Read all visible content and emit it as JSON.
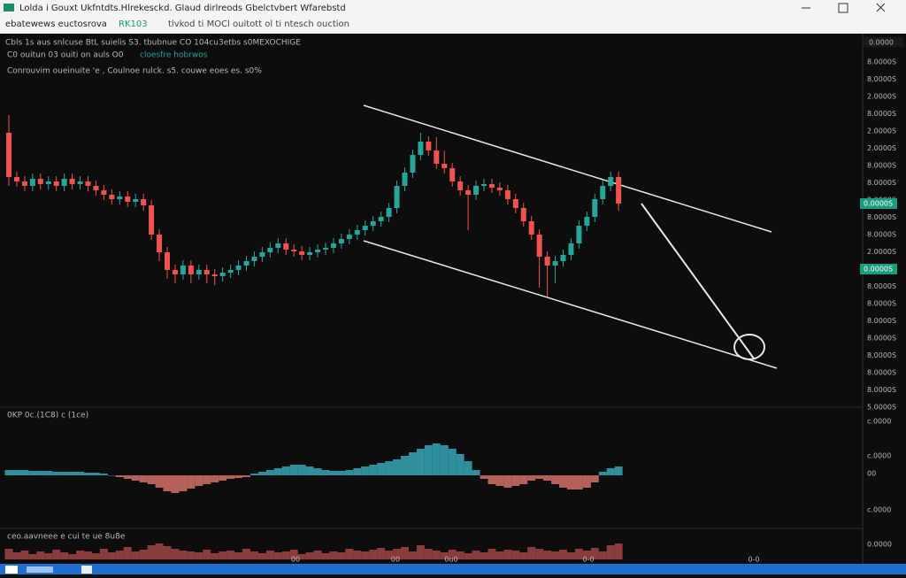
{
  "window": {
    "title": "Lolda  i Gouxt Ukfntdts.Hlrekesckd.   Glaud dirlreods Gbelctvbert Wfarebstd",
    "toolbar_a": "ebatewews euctosrova",
    "toolbar_b": "RK103",
    "toolbar_c": "tlvkod  ti  MOCl  ouitott  ol ti ntesch ouction"
  },
  "header": {
    "line1": "Cbls 1s  aus  snlcuse  BtL  suielis  S3.    tbubnue  CO 104cu3etbs  s0MEXOCHIGE",
    "line2": "C0  ouitun  03  ouiti on  auls   O0",
    "line2b": "cloesfre   hobrwos",
    "line3": "Conrouvim  oueinuite  'e  ,  Coulnoe  rulck.  s5.   couwe   eoes   es.   s0%"
  },
  "chart_data": [
    {
      "type": "candlestick",
      "ylim": [
        0,
        400
      ],
      "up_color": "#26a69a",
      "down_color": "#ef5350",
      "axis_labels": [
        "8.0000S",
        "8.0000S",
        "2.0000S",
        "8.0000S",
        "2.0000S",
        "2.0000S",
        "8.0000S",
        "8.0000S",
        "8.0000S",
        "8.0000S",
        "8.0000S",
        "2.0000S",
        "8.0000S",
        "8.0000S",
        "8.0000S",
        "8.0000S",
        "8.0000S",
        "8.0000S",
        "8.0000S",
        "8.0000S",
        "5.0000S"
      ],
      "top_tag": "0.0000",
      "price_tags": [
        "0.0000S",
        "0.0000S"
      ],
      "candles": [
        [
          310,
          330,
          250,
          260
        ],
        [
          260,
          266,
          249,
          255
        ],
        [
          255,
          261,
          244,
          250
        ],
        [
          250,
          264,
          244,
          258
        ],
        [
          258,
          264,
          246,
          252
        ],
        [
          252,
          261,
          246,
          255
        ],
        [
          255,
          261,
          244,
          250
        ],
        [
          250,
          264,
          244,
          258
        ],
        [
          258,
          264,
          246,
          252
        ],
        [
          252,
          261,
          246,
          255
        ],
        [
          255,
          261,
          244,
          250
        ],
        [
          250,
          256,
          239,
          245
        ],
        [
          245,
          251,
          234,
          240
        ],
        [
          240,
          246,
          229,
          235
        ],
        [
          235,
          244,
          229,
          238
        ],
        [
          238,
          244,
          226,
          232
        ],
        [
          232,
          241,
          226,
          235
        ],
        [
          235,
          241,
          222,
          228
        ],
        [
          228,
          234,
          189,
          195
        ],
        [
          195,
          201,
          165,
          175
        ],
        [
          175,
          181,
          145,
          155
        ],
        [
          155,
          161,
          140,
          150
        ],
        [
          150,
          166,
          144,
          160
        ],
        [
          160,
          166,
          140,
          150
        ],
        [
          150,
          161,
          144,
          155
        ],
        [
          155,
          161,
          140,
          150
        ],
        [
          150,
          156,
          138,
          148
        ],
        [
          148,
          158,
          142,
          152
        ],
        [
          152,
          161,
          146,
          155
        ],
        [
          155,
          166,
          149,
          160
        ],
        [
          160,
          171,
          154,
          165
        ],
        [
          165,
          176,
          159,
          170
        ],
        [
          170,
          181,
          164,
          175
        ],
        [
          175,
          186,
          169,
          180
        ],
        [
          180,
          191,
          174,
          185
        ],
        [
          185,
          191,
          172,
          178
        ],
        [
          178,
          184,
          170,
          176
        ],
        [
          176,
          182,
          166,
          172
        ],
        [
          172,
          181,
          166,
          175
        ],
        [
          175,
          184,
          169,
          178
        ],
        [
          178,
          186,
          172,
          180
        ],
        [
          180,
          191,
          174,
          185
        ],
        [
          185,
          196,
          179,
          190
        ],
        [
          190,
          201,
          184,
          195
        ],
        [
          195,
          206,
          189,
          200
        ],
        [
          200,
          211,
          194,
          205
        ],
        [
          205,
          216,
          199,
          210
        ],
        [
          210,
          221,
          204,
          215
        ],
        [
          215,
          231,
          209,
          225
        ],
        [
          225,
          256,
          219,
          250
        ],
        [
          250,
          271,
          244,
          265
        ],
        [
          265,
          291,
          259,
          285
        ],
        [
          285,
          310,
          279,
          300
        ],
        [
          300,
          306,
          284,
          290
        ],
        [
          290,
          305,
          269,
          275
        ],
        [
          275,
          290,
          264,
          270
        ],
        [
          270,
          276,
          249,
          255
        ],
        [
          255,
          261,
          239,
          245
        ],
        [
          245,
          251,
          200,
          240
        ],
        [
          240,
          256,
          234,
          250
        ],
        [
          250,
          258,
          244,
          252
        ],
        [
          252,
          258,
          242,
          248
        ],
        [
          248,
          254,
          239,
          245
        ],
        [
          245,
          251,
          229,
          235
        ],
        [
          235,
          241,
          219,
          225
        ],
        [
          225,
          231,
          204,
          210
        ],
        [
          210,
          216,
          189,
          195
        ],
        [
          195,
          201,
          135,
          170
        ],
        [
          170,
          176,
          125,
          160
        ],
        [
          160,
          171,
          140,
          165
        ],
        [
          165,
          178,
          159,
          172
        ],
        [
          172,
          191,
          166,
          185
        ],
        [
          185,
          211,
          179,
          205
        ],
        [
          205,
          221,
          199,
          215
        ],
        [
          215,
          241,
          209,
          235
        ],
        [
          235,
          256,
          229,
          250
        ],
        [
          250,
          266,
          244,
          260
        ],
        [
          260,
          266,
          222,
          230
        ]
      ]
    },
    {
      "type": "bar",
      "name": "0KP 0c.(1C8)  c  (1ce)",
      "ylim": [
        -40,
        40
      ],
      "pos_color": "#2f8f9d",
      "neg_color": "#b5615a",
      "axis_labels": [
        "c.0000",
        "c.0000",
        "00",
        "c.0000",
        "0.0000"
      ],
      "values": [
        6,
        6,
        6,
        5,
        5,
        5,
        4,
        4,
        4,
        4,
        3,
        3,
        2,
        0,
        -2,
        -4,
        -6,
        -8,
        -10,
        -14,
        -18,
        -20,
        -18,
        -15,
        -12,
        -10,
        -8,
        -6,
        -4,
        -3,
        -2,
        2,
        4,
        6,
        8,
        10,
        12,
        12,
        10,
        8,
        6,
        5,
        5,
        6,
        8,
        10,
        12,
        14,
        16,
        18,
        22,
        26,
        30,
        34,
        36,
        34,
        30,
        24,
        16,
        6,
        -4,
        -10,
        -12,
        -14,
        -12,
        -10,
        -6,
        -4,
        -6,
        -10,
        -14,
        -16,
        -16,
        -14,
        -8,
        4,
        8,
        10
      ]
    },
    {
      "type": "bar",
      "name": "ceo.aavneee e cui te ue 8u8e",
      "ylim": [
        0,
        25
      ],
      "color": "#8a3b3b",
      "values": [
        12,
        8,
        10,
        6,
        9,
        7,
        11,
        8,
        6,
        10,
        9,
        7,
        12,
        8,
        10,
        14,
        9,
        11,
        16,
        18,
        15,
        12,
        10,
        9,
        8,
        11,
        7,
        9,
        10,
        8,
        12,
        9,
        7,
        10,
        8,
        9,
        11,
        6,
        8,
        10,
        7,
        9,
        8,
        12,
        10,
        9,
        11,
        13,
        10,
        12,
        14,
        9,
        16,
        12,
        10,
        8,
        11,
        9,
        7,
        10,
        8,
        12,
        9,
        11,
        10,
        8,
        14,
        12,
        10,
        9,
        11,
        8,
        12,
        10,
        13,
        9,
        16,
        18
      ]
    }
  ],
  "time_labels": [
    "00",
    "00",
    "0u0",
    "0-0",
    "0-0"
  ]
}
